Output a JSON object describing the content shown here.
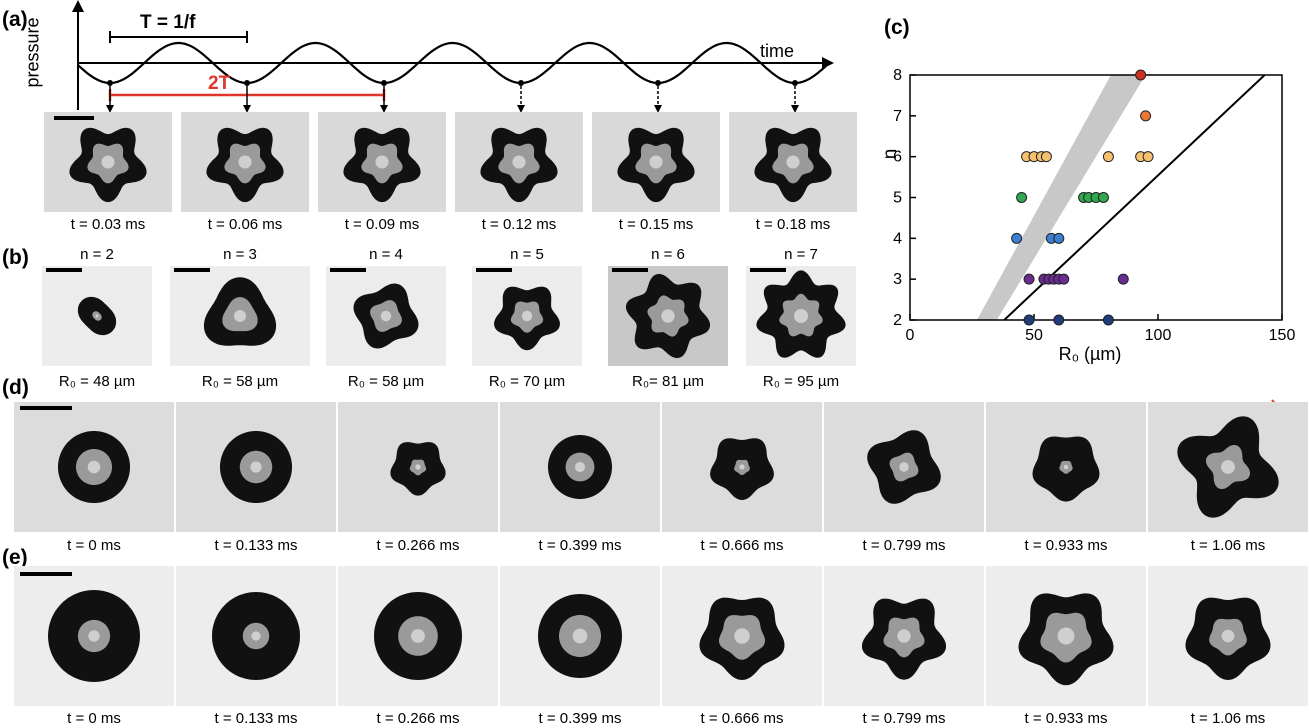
{
  "panels": {
    "a": "(a)",
    "b": "(b)",
    "c": "(c)",
    "d": "(d)",
    "e": "(e)"
  },
  "panel_a": {
    "ylabel": "pressure",
    "xlabel": "time",
    "period_label": "T = 1/f",
    "two_period_label": "2T",
    "captions": [
      "t = 0.03 ms",
      "t = 0.06 ms",
      "t = 0.09 ms",
      "t = 0.12 ms",
      "t = 0.15 ms",
      "t = 0.18 ms"
    ],
    "lobes": [
      5,
      5,
      5,
      5,
      5,
      5
    ]
  },
  "panel_b": {
    "modes": [
      "n = 2",
      "n = 3",
      "n = 4",
      "n = 5",
      "n = 6",
      "n = 7"
    ],
    "radii": [
      "R₀ = 48 µm",
      "R₀ = 58 µm",
      "R₀ = 58 µm",
      "R₀ = 70 µm",
      "R₀= 81 µm",
      "R₀ = 95 µm"
    ],
    "lobes": [
      2,
      3,
      4,
      5,
      6,
      7
    ]
  },
  "panel_d": {
    "captions": [
      "t = 0 ms",
      "t = 0.133 ms",
      "t = 0.266 ms",
      "t = 0.399 ms",
      "t = 0.666 ms",
      "t = 0.799 ms",
      "t = 0.933 ms",
      "t = 1.06 ms"
    ],
    "lobes": [
      0,
      0,
      5,
      0,
      5,
      4,
      5,
      4
    ]
  },
  "panel_e": {
    "captions": [
      "t = 0 ms",
      "t = 0.133 ms",
      "t = 0.266 ms",
      "t = 0.399 ms",
      "t = 0.666 ms",
      "t = 0.799 ms",
      "t = 0.933 ms",
      "t = 1.06 ms"
    ],
    "lobes": [
      0,
      0,
      0,
      0,
      5,
      5,
      5,
      5
    ]
  },
  "chart_data": {
    "type": "scatter",
    "xlabel": "R₀ (µm)",
    "ylabel": "n",
    "xlim": [
      0,
      150
    ],
    "ylim": [
      2,
      8
    ],
    "xticks": [
      0,
      50,
      100,
      150
    ],
    "yticks": [
      2,
      3,
      4,
      5,
      6,
      7,
      8
    ],
    "grid": false,
    "shaded_band": {
      "lower": [
        [
          35,
          2
        ],
        [
          95,
          8
        ]
      ],
      "upper": [
        [
          27,
          2
        ],
        [
          81,
          8
        ]
      ],
      "color": "#c8c8c8"
    },
    "line": [
      [
        38,
        2
      ],
      [
        143,
        8
      ]
    ],
    "series": [
      {
        "color": "#1f3d7a",
        "points": [
          [
            48,
            2
          ],
          [
            60,
            2
          ],
          [
            80,
            2
          ]
        ]
      },
      {
        "color": "#6a2c8f",
        "points": [
          [
            48,
            3
          ],
          [
            54,
            3
          ],
          [
            56,
            3
          ],
          [
            58,
            3
          ],
          [
            60,
            3
          ],
          [
            62,
            3
          ],
          [
            86,
            3
          ]
        ]
      },
      {
        "color": "#3d7fcf",
        "points": [
          [
            43,
            4
          ],
          [
            57,
            4
          ],
          [
            60,
            4
          ]
        ]
      },
      {
        "color": "#2fa84f",
        "points": [
          [
            45,
            5
          ],
          [
            70,
            5
          ],
          [
            72,
            5
          ],
          [
            75,
            5
          ],
          [
            78,
            5
          ]
        ]
      },
      {
        "color": "#f5c170",
        "points": [
          [
            47,
            6
          ],
          [
            50,
            6
          ],
          [
            53,
            6
          ],
          [
            55,
            6
          ],
          [
            80,
            6
          ],
          [
            93,
            6
          ],
          [
            96,
            6
          ]
        ]
      },
      {
        "color": "#ee7733",
        "points": [
          [
            95,
            7
          ]
        ]
      },
      {
        "color": "#cc3322",
        "points": [
          [
            93,
            8
          ]
        ]
      }
    ]
  }
}
